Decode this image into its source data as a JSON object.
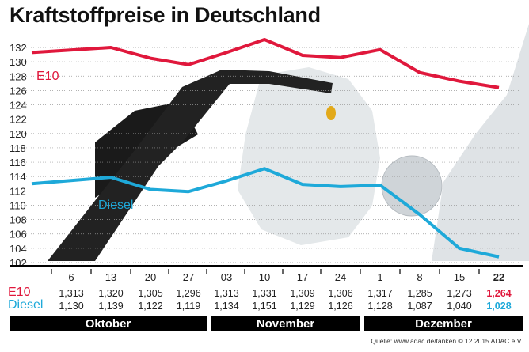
{
  "title": "Kraftstoffpreise in Deutschland",
  "colors": {
    "e10": "#e0183c",
    "diesel": "#1ea9d9",
    "grid": "#999999"
  },
  "chart_data": {
    "type": "line",
    "title": "Kraftstoffpreise in Deutschland",
    "ylim": [
      102,
      132
    ],
    "yticks": [
      132,
      130,
      128,
      126,
      124,
      122,
      120,
      118,
      116,
      114,
      112,
      110,
      108,
      106,
      104,
      102
    ],
    "grid": true,
    "categories": [
      "6",
      "13",
      "20",
      "27",
      "03",
      "10",
      "17",
      "24",
      "1",
      "8",
      "15",
      "22"
    ],
    "months": [
      "Oktober",
      "November",
      "Dezember"
    ],
    "series": [
      {
        "name": "E10",
        "values": [
          131.3,
          132.0,
          130.5,
          129.6,
          131.3,
          133.1,
          130.9,
          130.6,
          131.7,
          128.5,
          127.3,
          126.4
        ],
        "table": [
          "1,313",
          "1,320",
          "1,305",
          "1,296",
          "1,313",
          "1,331",
          "1,309",
          "1,306",
          "1,317",
          "1,285",
          "1,273",
          "1,264"
        ]
      },
      {
        "name": "Diesel",
        "values": [
          113.0,
          113.9,
          112.2,
          111.9,
          113.4,
          115.1,
          112.9,
          112.6,
          112.8,
          108.7,
          104.0,
          102.8
        ],
        "table": [
          "1,130",
          "1,139",
          "1,122",
          "1,119",
          "1,134",
          "1,151",
          "1,129",
          "1,126",
          "1,128",
          "1,087",
          "1,040",
          "1,028"
        ]
      }
    ]
  },
  "source": "Quelle: www.adac.de/tanken  © 12.2015  ADAC e.V."
}
